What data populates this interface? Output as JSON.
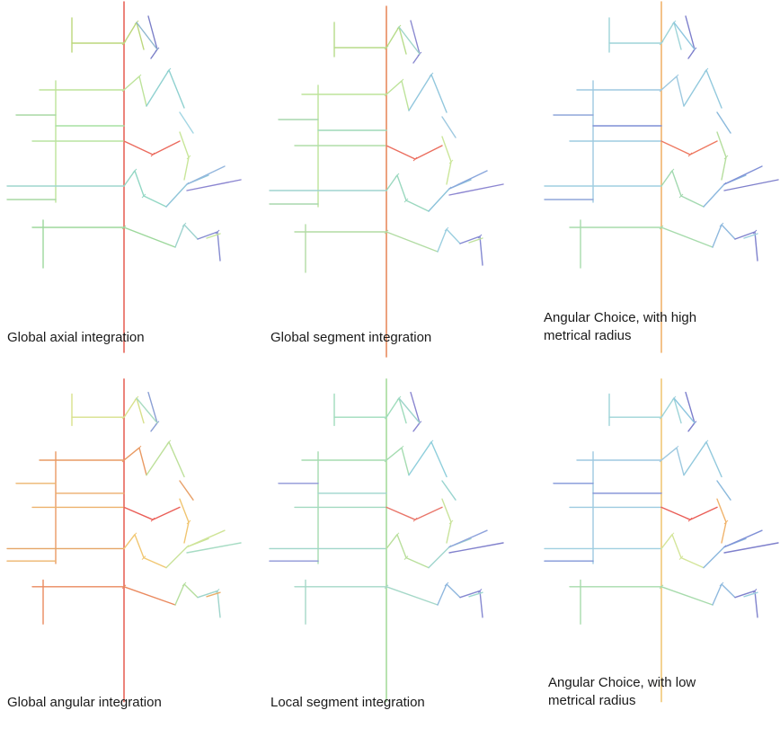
{
  "panels": [
    {
      "caption": "Global axial integration",
      "colors": {
        "vert": "#e8665a",
        "a": "#bcd77c",
        "b": "#8fb7cf",
        "c": "#7b7fc8",
        "d": "#bde39a",
        "e": "#a7e0a2",
        "f": "#8fd1d0",
        "g": "#a3d6e3",
        "h": "#b9e3a0",
        "i": "#eb6b5e",
        "j": "#c8e69a",
        "k": "#9ed5cd",
        "l": "#92d7c4",
        "m": "#8fc5d9",
        "n": "#93b6dd",
        "o": "#8c86d1",
        "p": "#9dd89c",
        "q": "#c3e39b",
        "r": "#9ed3cf",
        "s": "#858bd0",
        "left": "#a8d8a3"
      }
    },
    {
      "caption": "Global segment integration",
      "colors": {
        "vert": "#e88a5e",
        "a": "#b7dc8a",
        "b": "#9fd5c8",
        "c": "#8a89d0",
        "d": "#bde39a",
        "e": "#9fd9b8",
        "f": "#92c7dd",
        "g": "#9ec9e0",
        "h": "#b0dda8",
        "i": "#eb6e5f",
        "j": "#cbe69a",
        "k": "#9fd3cf",
        "l": "#9bd8bf",
        "m": "#8bc2da",
        "n": "#8aa7dc",
        "o": "#8c86d1",
        "p": "#b2dca4",
        "q": "#bfe19d",
        "r": "#9ccfe0",
        "s": "#8489d2",
        "left": "#a9d7ae"
      }
    },
    {
      "caption": "Angular Choice, with high\nmetrical radius",
      "colors": {
        "vert": "#f0b36c",
        "a": "#9ed4d8",
        "b": "#8ec6df",
        "c": "#7c7ecc",
        "d": "#9ec9e0",
        "e": "#7f8fd6",
        "f": "#92c9dd",
        "g": "#8ab9dc",
        "h": "#9dcbe0",
        "i": "#ee7a62",
        "j": "#b5de9e",
        "k": "#9fcfe0",
        "l": "#a3d9b0",
        "m": "#8bb7de",
        "n": "#8090d6",
        "o": "#7f80cc",
        "p": "#a7dbac",
        "q": "#9ccfde",
        "r": "#8fb9de",
        "s": "#7f82cd",
        "left": "#8fa6da"
      }
    },
    {
      "caption": "Global angular integration",
      "colors": {
        "vert": "#e8665a",
        "a": "#d8e08b",
        "b": "#a9dcc1",
        "c": "#8b9fd4",
        "d": "#e99a63",
        "e": "#edae6c",
        "f": "#bde09a",
        "g": "#e8a068",
        "h": "#edb26e",
        "i": "#ea5e57",
        "j": "#f0c571",
        "k": "#e5a566",
        "l": "#f1c772",
        "m": "#c9e39b",
        "n": "#cfe497",
        "o": "#a7dcc4",
        "p": "#ea8a5f",
        "q": "#e9ae6a",
        "r": "#b5de9d",
        "s": "#9ed4cb",
        "left": "#edb56e"
      }
    },
    {
      "caption": "Local segment integration",
      "colors": {
        "vert": "#a6dc9c",
        "a": "#9fdcbc",
        "b": "#9ed4cb",
        "c": "#8a86d0",
        "d": "#a5dcb1",
        "e": "#9fd5cd",
        "f": "#8fcfdc",
        "g": "#98d4cf",
        "h": "#a3d9c0",
        "i": "#e9766a",
        "j": "#c9e39b",
        "k": "#a0d6c9",
        "l": "#b9df9c",
        "m": "#9fd5cd",
        "n": "#8fa3dc",
        "o": "#8282cd",
        "p": "#a5d8c8",
        "q": "#9dd7cf",
        "r": "#8fb7de",
        "s": "#8588d1",
        "left": "#8f96d7"
      }
    },
    {
      "caption": "Angular Choice, with low\nmetrical radius",
      "colors": {
        "vert": "#f0c777",
        "a": "#9ed4d8",
        "b": "#8ec6df",
        "c": "#7c7ecc",
        "d": "#9ec9e0",
        "e": "#7f8fd6",
        "f": "#92c9dd",
        "g": "#8ab9dc",
        "h": "#9dcbe0",
        "i": "#ea5e57",
        "j": "#f0b36c",
        "k": "#9fcfe0",
        "l": "#d4e59a",
        "m": "#8bb7de",
        "n": "#8090d6",
        "o": "#7f80cc",
        "p": "#a7dbac",
        "q": "#9ccfde",
        "r": "#8fb9de",
        "s": "#7f82cd",
        "left": "#8096d8"
      }
    }
  ]
}
